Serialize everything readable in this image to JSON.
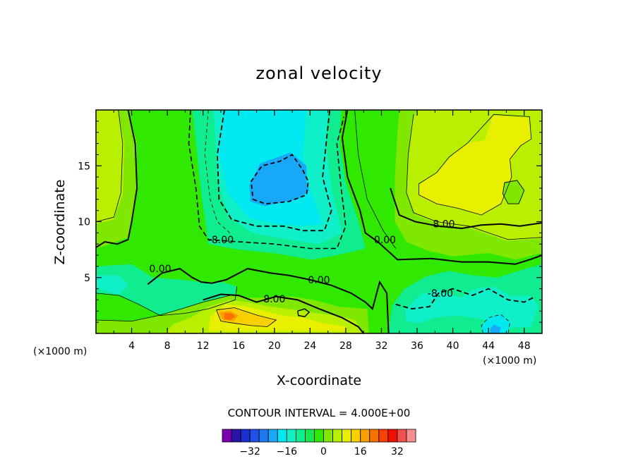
{
  "chart_data": {
    "type": "heatmap",
    "title": "zonal velocity",
    "xlabel": "X-coordinate",
    "ylabel": "Z-coordinate",
    "x_unit": "(×1000 m)",
    "x_unit_right": "(×1000 m)",
    "xlim": [
      0,
      50
    ],
    "ylim": [
      0,
      20
    ],
    "x_ticks": [
      4,
      8,
      12,
      16,
      20,
      24,
      28,
      32,
      36,
      40,
      44,
      48
    ],
    "y_ticks": [
      5,
      10,
      15
    ],
    "contour_interval_label": "CONTOUR INTERVAL = 4.000E+00",
    "contour_labels": [
      {
        "text": "8.00",
        "x": 39,
        "y": 9.8
      },
      {
        "text": "0.00",
        "x": 32.4,
        "y": 8.4
      },
      {
        "text": "-8.00",
        "x": 14,
        "y": 8.4
      },
      {
        "text": "0.00",
        "x": 7.2,
        "y": 5.8
      },
      {
        "text": "0.00",
        "x": 25,
        "y": 4.8
      },
      {
        "text": "8.00",
        "x": 20,
        "y": 3.1
      },
      {
        "text": "-8.00",
        "x": 38.6,
        "y": 3.6
      }
    ],
    "colorbar": {
      "colors": [
        "#7a00b0",
        "#2c13a8",
        "#1b2ed0",
        "#1f50e8",
        "#2078f0",
        "#18a8f8",
        "#00e8f0",
        "#10f0c8",
        "#10ec90",
        "#18e850",
        "#30e800",
        "#80e800",
        "#b8f000",
        "#e8f000",
        "#f8d000",
        "#f8a000",
        "#f87000",
        "#f84000",
        "#f01000",
        "#f05050",
        "#f89090"
      ],
      "tick_labels": [
        "-32",
        "-16",
        "0",
        "16",
        "32"
      ]
    },
    "field_colors": {
      "background": "#30e800",
      "light_green": "#80e800",
      "yellow_green": "#b8f000",
      "yellow": "#e8f000",
      "gold": "#f8d000",
      "orange": "#f8a000",
      "dark_orange": "#f87000",
      "teal_green": "#10ec90",
      "aqua": "#10f0c8",
      "cyan": "#00e8f0",
      "sky_blue": "#18a8f8"
    }
  }
}
